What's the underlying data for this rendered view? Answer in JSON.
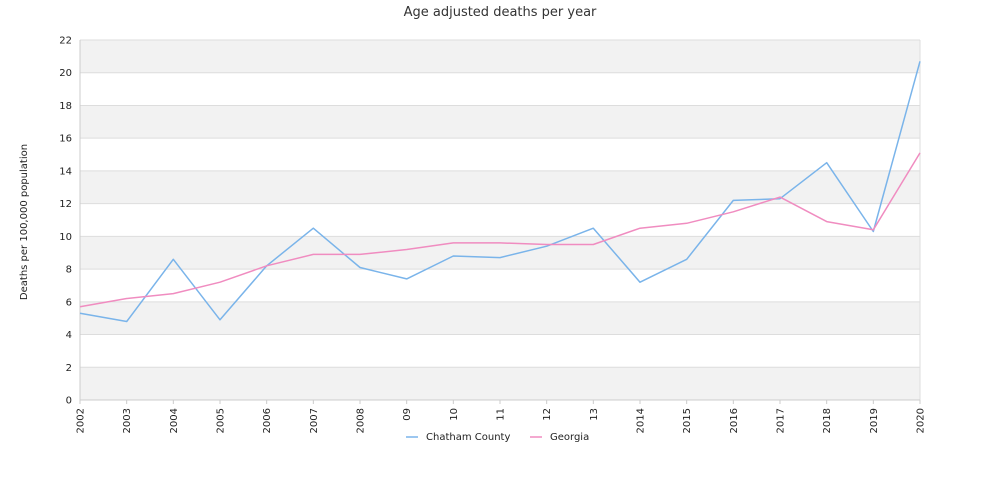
{
  "chart_data": {
    "type": "line",
    "title": "Age adjusted deaths per year",
    "xlabel": "",
    "ylabel": "Deaths per 100,000 population",
    "categories": [
      "2002",
      "2003",
      "2004",
      "2005",
      "2006",
      "2007",
      "2008",
      "09",
      "10",
      "11",
      "12",
      "13",
      "2014",
      "2015",
      "2016",
      "2017",
      "2018",
      "2019",
      "2020"
    ],
    "ylim": [
      0,
      22
    ],
    "yticks": [
      0,
      2,
      4,
      6,
      8,
      10,
      12,
      14,
      16,
      18,
      20,
      22
    ],
    "grid": "alternating horizontal bands",
    "legend_position": "bottom-center",
    "series": [
      {
        "name": "Chatham County",
        "color": "#7ab4ea",
        "values": [
          5.3,
          4.8,
          8.6,
          4.9,
          8.2,
          10.5,
          8.1,
          7.4,
          8.8,
          8.7,
          9.4,
          10.5,
          7.2,
          8.6,
          12.2,
          12.3,
          14.5,
          10.3,
          20.7
        ]
      },
      {
        "name": "Georgia",
        "color": "#f08cc0",
        "values": [
          5.7,
          6.2,
          6.5,
          7.2,
          8.2,
          8.9,
          8.9,
          9.2,
          9.6,
          9.6,
          9.5,
          9.5,
          10.5,
          10.8,
          11.5,
          12.4,
          10.9,
          10.4,
          15.1
        ]
      }
    ]
  }
}
